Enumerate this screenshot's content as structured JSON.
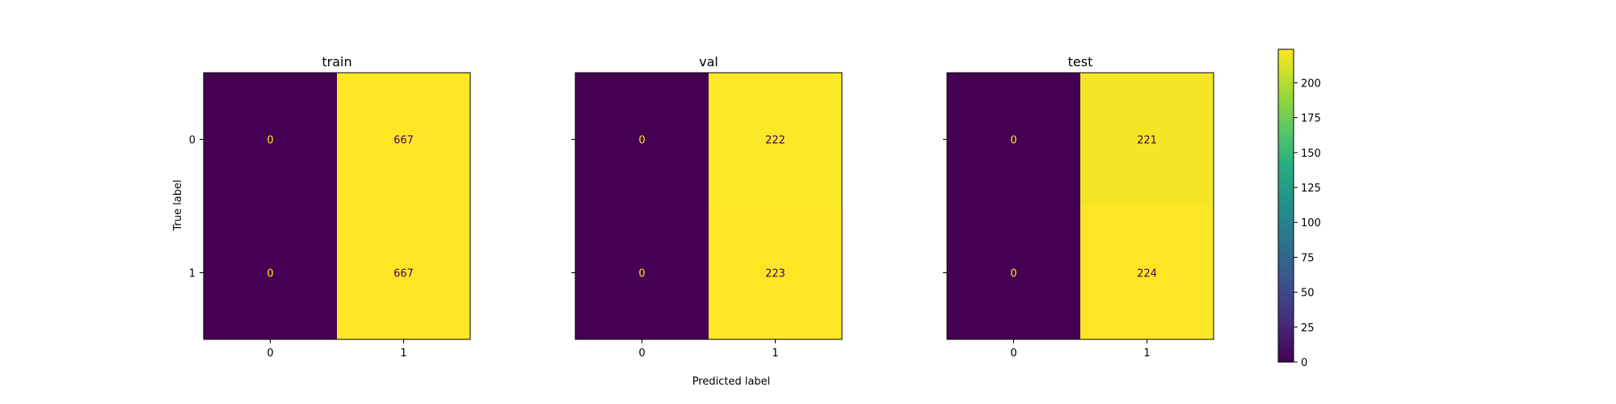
{
  "chart_data": {
    "type": "heatmap",
    "xlabel": "Predicted label",
    "ylabel": "True label",
    "colormap": "viridis",
    "colorbar": {
      "min": 0,
      "max": 224,
      "ticks": [
        0,
        25,
        50,
        75,
        100,
        125,
        150,
        175,
        200
      ]
    },
    "panels": [
      {
        "title": "train",
        "x_ticks": [
          "0",
          "1"
        ],
        "y_ticks": [
          "0",
          "1"
        ],
        "matrix": [
          [
            0,
            667
          ],
          [
            0,
            667
          ]
        ]
      },
      {
        "title": "val",
        "x_ticks": [
          "0",
          "1"
        ],
        "y_ticks": [
          "0",
          "1"
        ],
        "matrix": [
          [
            0,
            222
          ],
          [
            0,
            223
          ]
        ]
      },
      {
        "title": "test",
        "x_ticks": [
          "0",
          "1"
        ],
        "y_ticks": [
          "0",
          "1"
        ],
        "matrix": [
          [
            0,
            221
          ],
          [
            0,
            224
          ]
        ]
      }
    ]
  }
}
